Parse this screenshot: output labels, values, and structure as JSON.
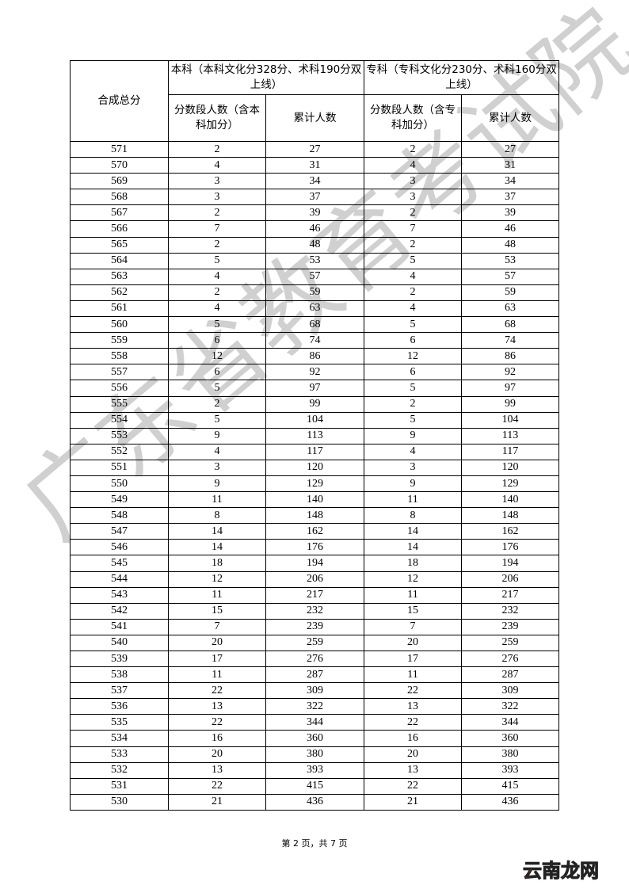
{
  "table": {
    "header": {
      "score_col": "合成总分",
      "undergrad_group": "本科（本科文化分328分、术科190分双上线）",
      "vocational_group": "专科（专科文化分230分、术科160分双上线）",
      "undergrad_count": "分数段人数（含本科加分）",
      "undergrad_cumulative": "累计人数",
      "vocational_count": "分数段人数（含专科加分）",
      "vocational_cumulative": "累计人数"
    },
    "rows": [
      [
        "571",
        "2",
        "27",
        "2",
        "27"
      ],
      [
        "570",
        "4",
        "31",
        "4",
        "31"
      ],
      [
        "569",
        "3",
        "34",
        "3",
        "34"
      ],
      [
        "568",
        "3",
        "37",
        "3",
        "37"
      ],
      [
        "567",
        "2",
        "39",
        "2",
        "39"
      ],
      [
        "566",
        "7",
        "46",
        "7",
        "46"
      ],
      [
        "565",
        "2",
        "48",
        "2",
        "48"
      ],
      [
        "564",
        "5",
        "53",
        "5",
        "53"
      ],
      [
        "563",
        "4",
        "57",
        "4",
        "57"
      ],
      [
        "562",
        "2",
        "59",
        "2",
        "59"
      ],
      [
        "561",
        "4",
        "63",
        "4",
        "63"
      ],
      [
        "560",
        "5",
        "68",
        "5",
        "68"
      ],
      [
        "559",
        "6",
        "74",
        "6",
        "74"
      ],
      [
        "558",
        "12",
        "86",
        "12",
        "86"
      ],
      [
        "557",
        "6",
        "92",
        "6",
        "92"
      ],
      [
        "556",
        "5",
        "97",
        "5",
        "97"
      ],
      [
        "555",
        "2",
        "99",
        "2",
        "99"
      ],
      [
        "554",
        "5",
        "104",
        "5",
        "104"
      ],
      [
        "553",
        "9",
        "113",
        "9",
        "113"
      ],
      [
        "552",
        "4",
        "117",
        "4",
        "117"
      ],
      [
        "551",
        "3",
        "120",
        "3",
        "120"
      ],
      [
        "550",
        "9",
        "129",
        "9",
        "129"
      ],
      [
        "549",
        "11",
        "140",
        "11",
        "140"
      ],
      [
        "548",
        "8",
        "148",
        "8",
        "148"
      ],
      [
        "547",
        "14",
        "162",
        "14",
        "162"
      ],
      [
        "546",
        "14",
        "176",
        "14",
        "176"
      ],
      [
        "545",
        "18",
        "194",
        "18",
        "194"
      ],
      [
        "544",
        "12",
        "206",
        "12",
        "206"
      ],
      [
        "543",
        "11",
        "217",
        "11",
        "217"
      ],
      [
        "542",
        "15",
        "232",
        "15",
        "232"
      ],
      [
        "541",
        "7",
        "239",
        "7",
        "239"
      ],
      [
        "540",
        "20",
        "259",
        "20",
        "259"
      ],
      [
        "539",
        "17",
        "276",
        "17",
        "276"
      ],
      [
        "538",
        "11",
        "287",
        "11",
        "287"
      ],
      [
        "537",
        "22",
        "309",
        "22",
        "309"
      ],
      [
        "536",
        "13",
        "322",
        "13",
        "322"
      ],
      [
        "535",
        "22",
        "344",
        "22",
        "344"
      ],
      [
        "534",
        "16",
        "360",
        "16",
        "360"
      ],
      [
        "533",
        "20",
        "380",
        "20",
        "380"
      ],
      [
        "532",
        "13",
        "393",
        "13",
        "393"
      ],
      [
        "531",
        "22",
        "415",
        "22",
        "415"
      ],
      [
        "530",
        "21",
        "436",
        "21",
        "436"
      ]
    ]
  },
  "watermark": "广东省教育考试院",
  "footer": {
    "page_info": "第 2 页，共 7 页"
  },
  "logo": {
    "part1": "云南",
    "part2": "龙网"
  }
}
